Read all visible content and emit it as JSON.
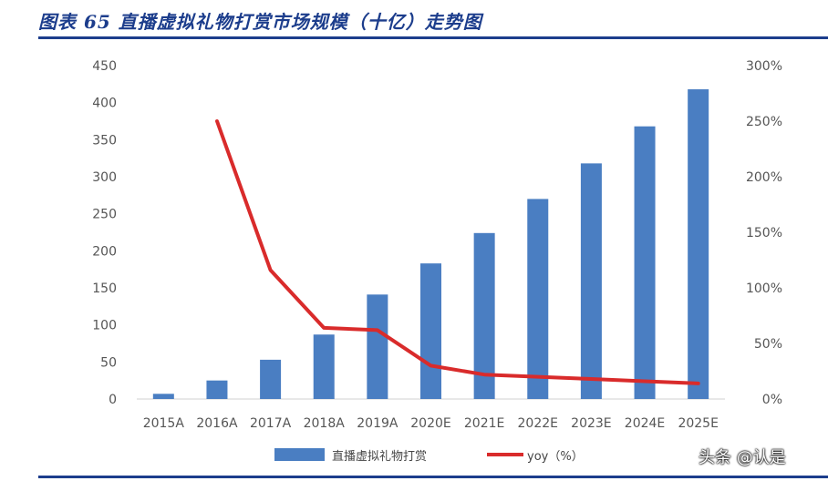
{
  "figure": {
    "title": "图表 65    直播虚拟礼物打赏市场规模（十亿）走势图",
    "watermark": "头条 @认是"
  },
  "colors": {
    "bar": "#4a7ec2",
    "line": "#d92b2b",
    "title": "#1c3d8c",
    "axis": "#d0d0d0"
  },
  "chart_data": {
    "type": "bar",
    "categories": [
      "2015A",
      "2016A",
      "2017A",
      "2018A",
      "2019A",
      "2020E",
      "2021E",
      "2022E",
      "2023E",
      "2024E",
      "2025E"
    ],
    "y_left": {
      "lim": [
        0,
        450
      ],
      "ticks": [
        "0",
        "50",
        "100",
        "150",
        "200",
        "250",
        "300",
        "350",
        "400",
        "450"
      ]
    },
    "y_right": {
      "lim": [
        0,
        3.0
      ],
      "ticks": [
        "0%",
        "50%",
        "100%",
        "150%",
        "200%",
        "250%",
        "300%"
      ]
    },
    "series": [
      {
        "name": "直播虚拟礼物打赏",
        "type": "bar",
        "axis": "left",
        "values": [
          7,
          25,
          53,
          87,
          141,
          183,
          224,
          270,
          318,
          368,
          418
        ]
      },
      {
        "name": "yoy（%）",
        "type": "line",
        "axis": "right",
        "values": [
          null,
          2.5,
          1.16,
          0.64,
          0.62,
          0.3,
          0.22,
          0.2,
          0.18,
          0.16,
          0.14
        ]
      }
    ],
    "grid": false,
    "legend": "bottom"
  }
}
